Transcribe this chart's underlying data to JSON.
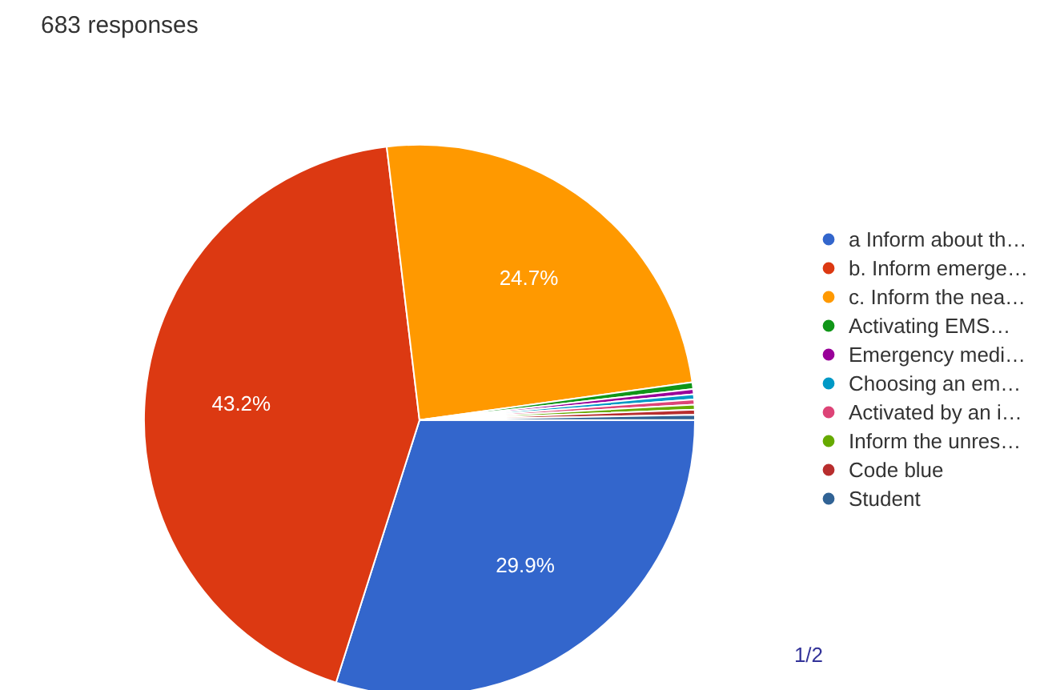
{
  "chart_data": {
    "type": "pie",
    "title": "683 responses",
    "categories": [
      "a Inform about th…",
      "b. Inform emerge…",
      "c. Inform the nea…",
      "Activating EMS…",
      "Emergency medi…",
      "Choosing an em…",
      "Activated by an i…",
      "Inform the unres…",
      "Code blue",
      "Student"
    ],
    "values": [
      29.9,
      43.2,
      24.7,
      0.4,
      0.3,
      0.3,
      0.3,
      0.3,
      0.3,
      0.3
    ],
    "colors": [
      "#3366cc",
      "#dc3912",
      "#ff9900",
      "#109618",
      "#990099",
      "#0099c6",
      "#dd4477",
      "#66aa00",
      "#b82e2e",
      "#316395"
    ],
    "value_labels": [
      "29.9%",
      "43.2%",
      "24.7%",
      null,
      null,
      null,
      null,
      null,
      null,
      null
    ],
    "legend": "right",
    "annotations": [
      "1/2"
    ]
  }
}
